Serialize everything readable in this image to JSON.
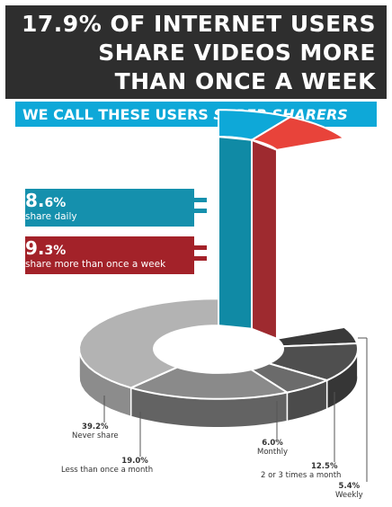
{
  "header": {
    "line1": "17.9% OF INTERNET USERS",
    "line2": "SHARE VIDEOS MORE",
    "line3": "THAN ONCE A WEEK"
  },
  "subheader": {
    "prefix": "WE CALL THESE USERS",
    "emphasis": "SUPER SHARERS"
  },
  "callouts": {
    "daily": {
      "pct_main": "8.",
      "pct_rest": "6%",
      "desc": "share daily"
    },
    "more_than_weekly": {
      "pct_main": "9.",
      "pct_rest": "3%",
      "desc": "share more than once a week"
    }
  },
  "colors": {
    "header_bg": "#2e2e2e",
    "subheader_bg": "#0ea8d8",
    "daily": "#0ea8d8",
    "more_than_weekly": "#e8433a",
    "daily_callout": "#1590ad",
    "weekly_callout": "#a32229"
  },
  "chart_data": {
    "type": "pie",
    "unit": "%",
    "slices": [
      {
        "label": "share daily",
        "value": 8.6,
        "color": "#0ea8d8",
        "side": "#108aa5",
        "exploded": true
      },
      {
        "label": "share more than once a week",
        "value": 9.3,
        "color": "#e8433a",
        "side": "#9e2a2f",
        "exploded": true
      },
      {
        "label": "Weekly",
        "value": 5.4,
        "pct_label": "5.4%",
        "color": "#3a3a3a",
        "side": "#262626"
      },
      {
        "label": "2 or 3 times a month",
        "value": 12.5,
        "pct_label": "12.5%",
        "color": "#4f4f4f",
        "side": "#363636"
      },
      {
        "label": "Monthly",
        "value": 6.0,
        "pct_label": "6.0%",
        "color": "#6b6b6b",
        "side": "#4b4b4b"
      },
      {
        "label": "Less than once a month",
        "value": 19.0,
        "pct_label": "19.0%",
        "color": "#8a8a8a",
        "side": "#636363"
      },
      {
        "label": "Never share",
        "value": 39.2,
        "pct_label": "39.2%",
        "color": "#b3b3b3",
        "side": "#8c8c8c"
      }
    ]
  }
}
